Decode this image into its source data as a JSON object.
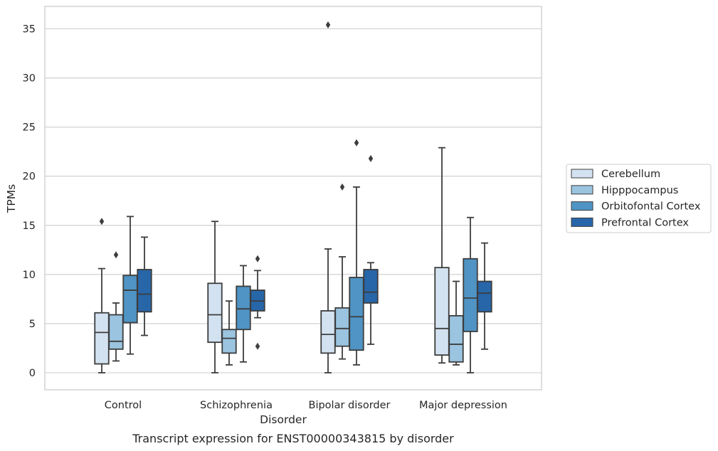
{
  "colors": {
    "Cerebellum": "#d3e2f0",
    "Hipppocampus": "#9ac4df",
    "Orbitofontal Cortex": "#4f94c4",
    "Prefrontal Cortex": "#2766a8",
    "grid": "#cccccc",
    "frame": "#cccccc",
    "box_edge": "#3d3d3d"
  },
  "chart_data": {
    "type": "box",
    "title": "",
    "caption": "Transcript expression for ENST00000343815 by disorder",
    "xlabel": "Disorder",
    "ylabel": "TPMs",
    "ylim": [
      -1.7,
      37.2
    ],
    "yticks": [
      0,
      5,
      10,
      15,
      20,
      25,
      30,
      35
    ],
    "grid": true,
    "legend_position": "right",
    "categories": [
      "Control",
      "Schizophrenia",
      "Bipolar disorder",
      "Major depression"
    ],
    "series": [
      {
        "name": "Cerebellum",
        "boxes": [
          {
            "whisker_low": 0.0,
            "q1": 0.9,
            "median": 4.1,
            "q3": 6.1,
            "whisker_high": 10.6,
            "outliers": [
              15.4
            ]
          },
          {
            "whisker_low": 0.0,
            "q1": 3.1,
            "median": 5.9,
            "q3": 9.1,
            "whisker_high": 15.4,
            "outliers": []
          },
          {
            "whisker_low": 0.0,
            "q1": 2.0,
            "median": 3.9,
            "q3": 6.3,
            "whisker_high": 12.6,
            "outliers": [
              35.4
            ]
          },
          {
            "whisker_low": 1.0,
            "q1": 1.8,
            "median": 4.5,
            "q3": 10.7,
            "whisker_high": 22.9,
            "outliers": []
          }
        ]
      },
      {
        "name": "Hipppocampus",
        "boxes": [
          {
            "whisker_low": 1.2,
            "q1": 2.4,
            "median": 3.2,
            "q3": 5.9,
            "whisker_high": 7.1,
            "outliers": [
              12.0
            ]
          },
          {
            "whisker_low": 0.8,
            "q1": 2.0,
            "median": 3.5,
            "q3": 4.4,
            "whisker_high": 7.3,
            "outliers": []
          },
          {
            "whisker_low": 1.4,
            "q1": 2.7,
            "median": 4.5,
            "q3": 6.6,
            "whisker_high": 11.8,
            "outliers": [
              18.9
            ]
          },
          {
            "whisker_low": 0.8,
            "q1": 1.1,
            "median": 2.9,
            "q3": 5.8,
            "whisker_high": 9.3,
            "outliers": []
          }
        ]
      },
      {
        "name": "Orbitofontal Cortex",
        "boxes": [
          {
            "whisker_low": 1.9,
            "q1": 5.1,
            "median": 8.4,
            "q3": 9.9,
            "whisker_high": 15.9,
            "outliers": []
          },
          {
            "whisker_low": 1.1,
            "q1": 4.4,
            "median": 6.5,
            "q3": 8.8,
            "whisker_high": 10.9,
            "outliers": []
          },
          {
            "whisker_low": 0.8,
            "q1": 2.3,
            "median": 5.7,
            "q3": 9.7,
            "whisker_high": 18.9,
            "outliers": [
              23.4
            ]
          },
          {
            "whisker_low": 0.0,
            "q1": 4.2,
            "median": 7.6,
            "q3": 11.6,
            "whisker_high": 15.8,
            "outliers": []
          }
        ]
      },
      {
        "name": "Prefrontal Cortex",
        "boxes": [
          {
            "whisker_low": 3.8,
            "q1": 6.2,
            "median": 8.0,
            "q3": 10.5,
            "whisker_high": 13.8,
            "outliers": []
          },
          {
            "whisker_low": 5.6,
            "q1": 6.3,
            "median": 7.3,
            "q3": 8.4,
            "whisker_high": 10.4,
            "outliers": [
              11.6,
              2.7
            ]
          },
          {
            "whisker_low": 2.9,
            "q1": 7.1,
            "median": 8.2,
            "q3": 10.5,
            "whisker_high": 11.2,
            "outliers": [
              21.8
            ]
          },
          {
            "whisker_low": 2.4,
            "q1": 6.2,
            "median": 8.1,
            "q3": 9.3,
            "whisker_high": 13.2,
            "outliers": []
          }
        ]
      }
    ]
  }
}
